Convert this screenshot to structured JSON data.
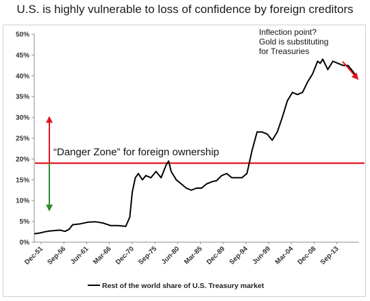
{
  "title": "U.S. is highly vulnerable to loss of confidence by foreign creditors",
  "chart_data": {
    "type": "line",
    "title": "U.S. is highly vulnerable to loss of confidence by foreign creditors",
    "xlabel": "",
    "ylabel": "",
    "ylim": [
      0,
      50
    ],
    "y_ticks": [
      "0%",
      "5%",
      "10%",
      "15%",
      "20%",
      "25%",
      "30%",
      "35%",
      "40%",
      "45%",
      "50%"
    ],
    "x_ticks": [
      "Dec-51",
      "Sep-56",
      "Jun-61",
      "Mar-66",
      "Dec-70",
      "Sep-75",
      "Jun-80",
      "Mar-85",
      "Dec-89",
      "Sep-94",
      "Jun-99",
      "Mar-04",
      "Dec-08",
      "Sep-13"
    ],
    "x_range": [
      1951.9,
      2017.0
    ],
    "series": [
      {
        "name": "Rest of the world share of U.S. Treasury market",
        "color": "#000000",
        "x": [
          1951.9,
          1953.0,
          1954.0,
          1955.0,
          1956.0,
          1957.0,
          1958.0,
          1958.8,
          1959.5,
          1961.0,
          1962.5,
          1964.0,
          1965.5,
          1967.0,
          1968.5,
          1970.0,
          1970.8,
          1971.3,
          1971.9,
          1972.5,
          1973.3,
          1974.0,
          1975.0,
          1976.0,
          1977.0,
          1978.0,
          1978.5,
          1979.0,
          1980.0,
          1981.0,
          1982.0,
          1983.0,
          1984.0,
          1985.0,
          1986.0,
          1987.0,
          1988.0,
          1989.0,
          1990.0,
          1991.0,
          1992.0,
          1993.0,
          1994.0,
          1995.0,
          1996.0,
          1997.0,
          1998.0,
          1999.0,
          2000.0,
          2001.0,
          2002.0,
          2003.0,
          2004.0,
          2005.0,
          2006.0,
          2007.0,
          2008.0,
          2008.5,
          2009.0,
          2010.0,
          2011.0,
          2012.0,
          2013.0,
          2014.0,
          2015.0,
          2015.8
        ],
        "values": [
          2.0,
          2.2,
          2.5,
          2.7,
          2.8,
          2.9,
          2.6,
          3.1,
          4.2,
          4.4,
          4.8,
          4.9,
          4.6,
          4.0,
          4.0,
          3.8,
          6.0,
          12.0,
          15.5,
          16.5,
          15.0,
          16.0,
          15.5,
          17.0,
          15.5,
          18.5,
          19.5,
          17.0,
          15.0,
          14.0,
          13.0,
          12.5,
          13.0,
          13.0,
          14.0,
          14.5,
          14.8,
          16.0,
          16.5,
          15.5,
          15.5,
          15.5,
          16.5,
          22.0,
          26.5,
          26.5,
          26.0,
          24.5,
          26.5,
          30.0,
          34.0,
          36.0,
          35.5,
          36.0,
          38.5,
          40.5,
          43.5,
          43.0,
          44.0,
          41.5,
          43.5,
          43.0,
          42.5,
          42.5,
          41.0,
          39.5
        ]
      }
    ],
    "reference_line": {
      "value": 19.0,
      "color": "#e0141e"
    },
    "arrows": {
      "up_color": "#e0141e",
      "down_color": "#2e8b2e",
      "trend_color": "#e0141e"
    },
    "annotations": {
      "danger_zone": "“Danger Zone” for foreign ownership",
      "inflection_lines": [
        "Inflection point?",
        "Gold is substituting",
        "for Treasuries"
      ]
    },
    "legend": {
      "position": "bottom",
      "label": "Rest of the world share of U.S. Treasury market"
    },
    "grid": false
  }
}
